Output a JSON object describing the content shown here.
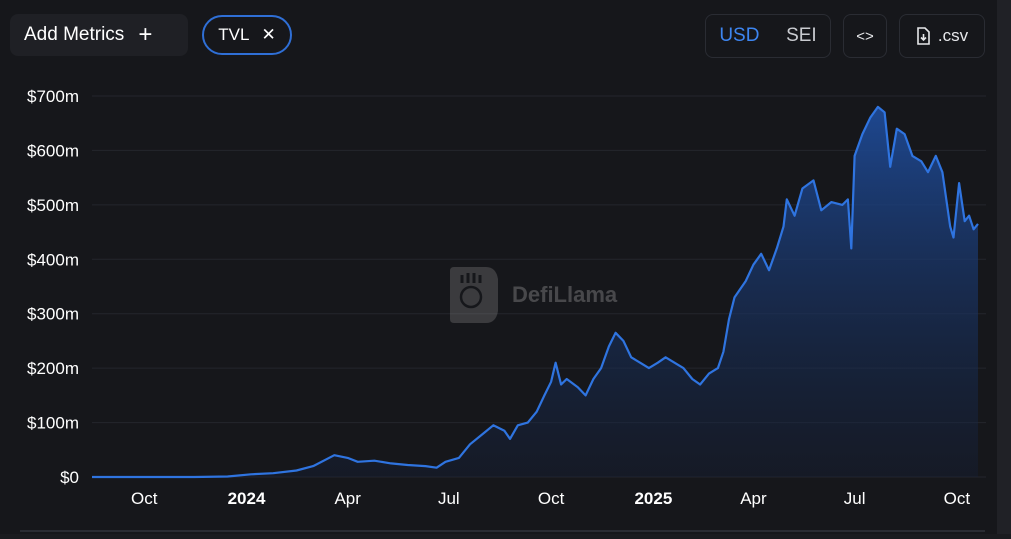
{
  "toolbar": {
    "add_metrics_label": "Add Metrics",
    "add_icon": "+",
    "metric_pill_label": "TVL",
    "remove_icon": "✕",
    "currency_options": [
      "USD",
      "SEI"
    ],
    "currency_selected": "USD",
    "embed_icon": "<>",
    "csv_label": ".csv"
  },
  "watermark": {
    "text": "DefiLlama"
  },
  "colors": {
    "line": "#2f74e0",
    "fill_top": "#1e4a96",
    "accent": "#3d85f0",
    "background": "#16171b"
  },
  "chart_data": {
    "type": "area",
    "ylim": [
      0,
      700
    ],
    "y_tick_labels": [
      "$0",
      "$100m",
      "$200m",
      "$300m",
      "$400m",
      "$500m",
      "$600m",
      "$700m"
    ],
    "y_ticks": [
      0,
      100,
      200,
      300,
      400,
      500,
      600,
      700
    ],
    "x_tick_labels": [
      "Oct",
      "2024",
      "Apr",
      "Jul",
      "Oct",
      "2025",
      "Apr",
      "Jul",
      "Oct"
    ],
    "x_ticks": [
      "2023-10-01",
      "2024-01-01",
      "2024-04-01",
      "2024-07-01",
      "2024-10-01",
      "2025-01-01",
      "2025-04-01",
      "2025-07-01",
      "2025-10-01"
    ],
    "x_bold_ticks": [
      "2024",
      "2025"
    ],
    "xlim": [
      "2023-08-15",
      "2025-10-20"
    ],
    "grid": "horizontal",
    "series": [
      {
        "values_unit": "millions USD",
        "points": [
          [
            "2023-08-15",
            0
          ],
          [
            "2023-09-15",
            0
          ],
          [
            "2023-10-15",
            0
          ],
          [
            "2023-11-15",
            0
          ],
          [
            "2023-12-15",
            1
          ],
          [
            "2024-01-05",
            5
          ],
          [
            "2024-01-25",
            7
          ],
          [
            "2024-02-15",
            12
          ],
          [
            "2024-03-01",
            20
          ],
          [
            "2024-03-20",
            40
          ],
          [
            "2024-04-01",
            35
          ],
          [
            "2024-04-10",
            28
          ],
          [
            "2024-04-25",
            30
          ],
          [
            "2024-05-10",
            25
          ],
          [
            "2024-05-25",
            22
          ],
          [
            "2024-06-10",
            20
          ],
          [
            "2024-06-20",
            17
          ],
          [
            "2024-06-28",
            28
          ],
          [
            "2024-07-10",
            35
          ],
          [
            "2024-07-20",
            60
          ],
          [
            "2024-08-01",
            80
          ],
          [
            "2024-08-10",
            95
          ],
          [
            "2024-08-20",
            85
          ],
          [
            "2024-08-25",
            70
          ],
          [
            "2024-09-01",
            95
          ],
          [
            "2024-09-10",
            100
          ],
          [
            "2024-09-18",
            120
          ],
          [
            "2024-09-25",
            150
          ],
          [
            "2024-10-01",
            175
          ],
          [
            "2024-10-05",
            210
          ],
          [
            "2024-10-10",
            170
          ],
          [
            "2024-10-15",
            180
          ],
          [
            "2024-10-25",
            165
          ],
          [
            "2024-11-01",
            150
          ],
          [
            "2024-11-08",
            180
          ],
          [
            "2024-11-15",
            200
          ],
          [
            "2024-11-22",
            240
          ],
          [
            "2024-11-28",
            265
          ],
          [
            "2024-12-05",
            250
          ],
          [
            "2024-12-12",
            220
          ],
          [
            "2024-12-20",
            210
          ],
          [
            "2024-12-28",
            200
          ],
          [
            "2025-01-05",
            210
          ],
          [
            "2025-01-12",
            220
          ],
          [
            "2025-01-20",
            210
          ],
          [
            "2025-01-28",
            200
          ],
          [
            "2025-02-05",
            180
          ],
          [
            "2025-02-12",
            170
          ],
          [
            "2025-02-20",
            190
          ],
          [
            "2025-02-28",
            200
          ],
          [
            "2025-03-05",
            230
          ],
          [
            "2025-03-10",
            290
          ],
          [
            "2025-03-15",
            330
          ],
          [
            "2025-03-25",
            360
          ],
          [
            "2025-04-01",
            390
          ],
          [
            "2025-04-08",
            410
          ],
          [
            "2025-04-15",
            380
          ],
          [
            "2025-04-22",
            420
          ],
          [
            "2025-04-28",
            460
          ],
          [
            "2025-05-01",
            510
          ],
          [
            "2025-05-08",
            480
          ],
          [
            "2025-05-15",
            530
          ],
          [
            "2025-05-25",
            545
          ],
          [
            "2025-06-01",
            490
          ],
          [
            "2025-06-10",
            505
          ],
          [
            "2025-06-20",
            500
          ],
          [
            "2025-06-25",
            510
          ],
          [
            "2025-06-28",
            420
          ],
          [
            "2025-07-01",
            590
          ],
          [
            "2025-07-08",
            630
          ],
          [
            "2025-07-15",
            660
          ],
          [
            "2025-07-22",
            680
          ],
          [
            "2025-07-28",
            670
          ],
          [
            "2025-08-02",
            570
          ],
          [
            "2025-08-08",
            640
          ],
          [
            "2025-08-15",
            630
          ],
          [
            "2025-08-22",
            590
          ],
          [
            "2025-08-30",
            580
          ],
          [
            "2025-09-05",
            560
          ],
          [
            "2025-09-12",
            590
          ],
          [
            "2025-09-18",
            560
          ],
          [
            "2025-09-25",
            460
          ],
          [
            "2025-09-28",
            440
          ],
          [
            "2025-10-03",
            540
          ],
          [
            "2025-10-08",
            470
          ],
          [
            "2025-10-12",
            480
          ],
          [
            "2025-10-16",
            455
          ],
          [
            "2025-10-20",
            465
          ]
        ]
      }
    ]
  }
}
